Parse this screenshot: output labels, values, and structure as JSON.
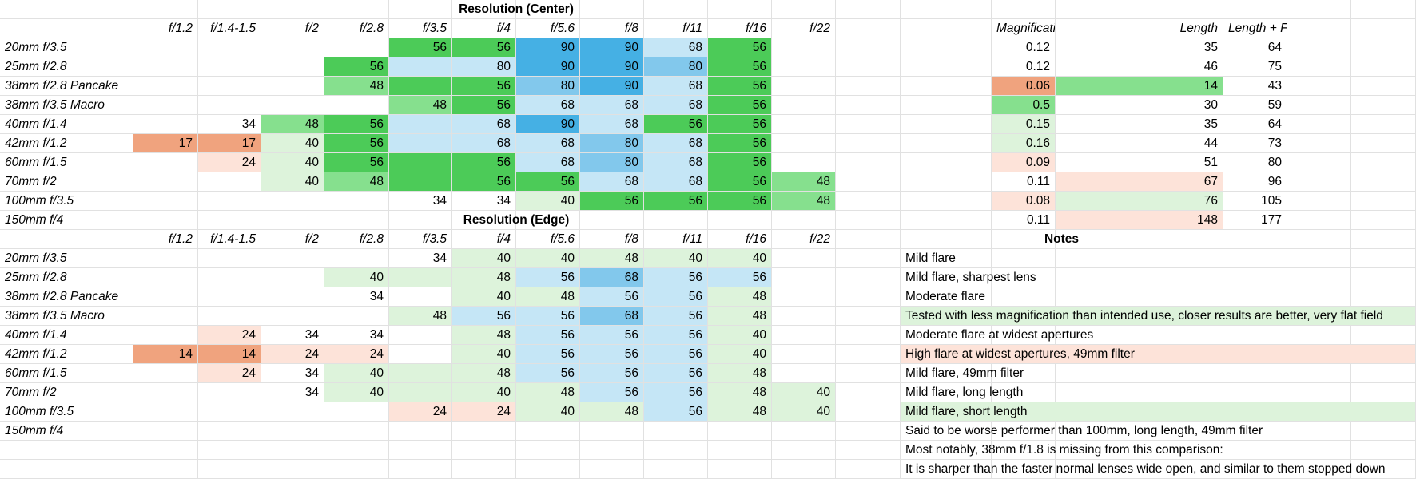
{
  "colors": {
    "green_dark": "#4ccb58",
    "green_mid": "#86e08e",
    "green_light": "#ddf3db",
    "blue_dark": "#45b0e4",
    "blue_mid": "#82c8ec",
    "blue_light": "#c5e6f6",
    "orange_dark": "#f0a37e",
    "orange_light": "#fde3d9",
    "gridline": "#e1e1e1"
  },
  "resolution_center": {
    "title": "Resolution (Center)",
    "apertures": [
      "f/1.2",
      "f/1.4-1.5",
      "f/2",
      "f/2.8",
      "f/3.5",
      "f/4",
      "f/5.6",
      "f/8",
      "f/11",
      "f/16",
      "f/22"
    ],
    "rows": [
      {
        "lens": "20mm f/3.5",
        "values": [
          "",
          "",
          "",
          "",
          "56",
          "56",
          "90",
          "90",
          "68",
          "56",
          ""
        ]
      },
      {
        "lens": "25mm f/2.8",
        "values": [
          "",
          "",
          "",
          "56",
          "",
          "80",
          "90",
          "90",
          "80",
          "56",
          ""
        ]
      },
      {
        "lens": "38mm f/2.8 Pancake",
        "values": [
          "",
          "",
          "",
          "48",
          "",
          "56",
          "80",
          "90",
          "68",
          "56",
          ""
        ]
      },
      {
        "lens": "38mm f/3.5 Macro",
        "values": [
          "",
          "",
          "",
          "",
          "48",
          "56",
          "68",
          "68",
          "68",
          "56",
          ""
        ]
      },
      {
        "lens": "40mm f/1.4",
        "values": [
          "",
          "34",
          "48",
          "56",
          "",
          "68",
          "90",
          "68",
          "56",
          "56",
          ""
        ]
      },
      {
        "lens": "42mm f/1.2",
        "values": [
          "17",
          "17",
          "40",
          "56",
          "",
          "68",
          "68",
          "80",
          "68",
          "56",
          ""
        ]
      },
      {
        "lens": "60mm f/1.5",
        "values": [
          "",
          "24",
          "40",
          "56",
          "",
          "56",
          "68",
          "80",
          "68",
          "56",
          ""
        ]
      },
      {
        "lens": "70mm f/2",
        "values": [
          "",
          "",
          "40",
          "48",
          "",
          "56",
          "56",
          "68",
          "68",
          "56",
          "48"
        ]
      },
      {
        "lens": "100mm f/3.5",
        "values": [
          "",
          "",
          "",
          "",
          "34",
          "34",
          "40",
          "56",
          "56",
          "56",
          "48"
        ]
      },
      {
        "lens": "150mm f/4",
        "values": [
          "",
          "",
          "",
          "",
          "",
          "",
          "",
          "",
          "",
          "",
          ""
        ]
      }
    ]
  },
  "resolution_edge": {
    "title": "Resolution (Edge)",
    "apertures": [
      "f/1.2",
      "f/1.4-1.5",
      "f/2",
      "f/2.8",
      "f/3.5",
      "f/4",
      "f/5.6",
      "f/8",
      "f/11",
      "f/16",
      "f/22"
    ],
    "rows": [
      {
        "lens": "20mm f/3.5",
        "values": [
          "",
          "",
          "",
          "",
          "34",
          "40",
          "40",
          "48",
          "40",
          "40",
          ""
        ]
      },
      {
        "lens": "25mm f/2.8",
        "values": [
          "",
          "",
          "",
          "40",
          "",
          "48",
          "56",
          "68",
          "56",
          "56",
          ""
        ]
      },
      {
        "lens": "38mm f/2.8 Pancake",
        "values": [
          "",
          "",
          "",
          "34",
          "",
          "40",
          "48",
          "56",
          "56",
          "48",
          ""
        ]
      },
      {
        "lens": "38mm f/3.5 Macro",
        "values": [
          "",
          "",
          "",
          "",
          "48",
          "56",
          "56",
          "68",
          "56",
          "48",
          ""
        ]
      },
      {
        "lens": "40mm f/1.4",
        "values": [
          "",
          "24",
          "34",
          "34",
          "",
          "48",
          "56",
          "56",
          "56",
          "40",
          ""
        ]
      },
      {
        "lens": "42mm f/1.2",
        "values": [
          "14",
          "14",
          "24",
          "24",
          "",
          "40",
          "56",
          "56",
          "56",
          "40",
          ""
        ]
      },
      {
        "lens": "60mm f/1.5",
        "values": [
          "",
          "24",
          "34",
          "40",
          "",
          "48",
          "56",
          "56",
          "56",
          "48",
          ""
        ]
      },
      {
        "lens": "70mm f/2",
        "values": [
          "",
          "",
          "34",
          "40",
          "",
          "40",
          "48",
          "56",
          "56",
          "48",
          "40"
        ]
      },
      {
        "lens": "100mm f/3.5",
        "values": [
          "",
          "",
          "",
          "",
          "24",
          "24",
          "40",
          "48",
          "56",
          "48",
          "40"
        ]
      },
      {
        "lens": "150mm f/4",
        "values": [
          "",
          "",
          "",
          "",
          "",
          "",
          "",
          "",
          "",
          "",
          ""
        ]
      }
    ]
  },
  "specs": {
    "headers": [
      "Magnification",
      "Length",
      "Length + Flange Distance"
    ],
    "rows": [
      [
        "0.12",
        "35",
        "64"
      ],
      [
        "0.12",
        "46",
        "75"
      ],
      [
        "0.06",
        "14",
        "43"
      ],
      [
        "0.5",
        "30",
        "59"
      ],
      [
        "0.15",
        "35",
        "64"
      ],
      [
        "0.16",
        "44",
        "73"
      ],
      [
        "0.09",
        "51",
        "80"
      ],
      [
        "0.11",
        "67",
        "96"
      ],
      [
        "0.08",
        "76",
        "105"
      ],
      [
        "0.11",
        "148",
        "177"
      ]
    ]
  },
  "notes": {
    "title": "Notes",
    "items": [
      "Mild flare",
      "Mild flare, sharpest lens",
      "Moderate flare",
      "Tested with less magnification than intended use, closer results are better, very flat field",
      "Moderate flare at widest apertures",
      "High flare at widest apertures, 49mm filter",
      "Mild flare, 49mm filter",
      "Mild flare, long length",
      "Mild flare, short length",
      "Said to be worse performer than 100mm, long length, 49mm filter",
      "Most notably, 38mm f/1.8 is missing from this comparison:",
      "It is sharper than the faster normal lenses wide open, and similar to them stopped down"
    ]
  }
}
